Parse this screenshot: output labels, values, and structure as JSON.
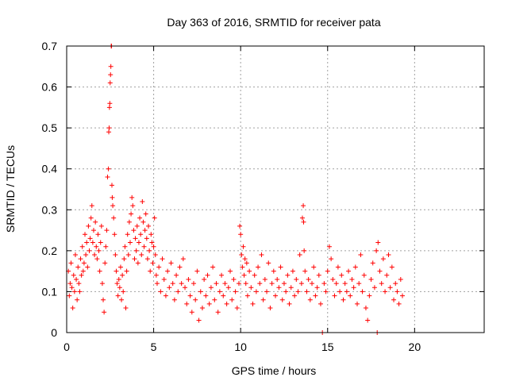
{
  "chart_data": {
    "type": "scatter",
    "title": "Day 363 of 2016, SRMTID for receiver pata",
    "xlabel": "GPS time / hours",
    "ylabel": "SRMTID / TECUs",
    "xlim": [
      0,
      24
    ],
    "ylim": [
      0,
      0.7
    ],
    "xticks": [
      0,
      5,
      10,
      15,
      20
    ],
    "yticks": [
      0,
      0.1,
      0.2,
      0.3,
      0.4,
      0.5,
      0.6,
      0.7
    ],
    "ytick_labels": [
      "0",
      "0.1",
      "0.2",
      "0.3",
      "0.4",
      "0.5",
      "0.6",
      "0.7"
    ],
    "grid": true,
    "marker": "+",
    "color": "#ff0000",
    "series": [
      {
        "name": "SRMTID",
        "points": [
          [
            0.1,
            0.15
          ],
          [
            0.15,
            0.09
          ],
          [
            0.2,
            0.12
          ],
          [
            0.25,
            0.17
          ],
          [
            0.3,
            0.11
          ],
          [
            0.35,
            0.06
          ],
          [
            0.4,
            0.14
          ],
          [
            0.45,
            0.1
          ],
          [
            0.5,
            0.19
          ],
          [
            0.55,
            0.13
          ],
          [
            0.6,
            0.08
          ],
          [
            0.65,
            0.16
          ],
          [
            0.7,
            0.12
          ],
          [
            0.75,
            0.1
          ],
          [
            0.8,
            0.18
          ],
          [
            0.85,
            0.14
          ],
          [
            0.9,
            0.21
          ],
          [
            0.95,
            0.15
          ],
          [
            1.0,
            0.17
          ],
          [
            1.05,
            0.24
          ],
          [
            1.1,
            0.19
          ],
          [
            1.15,
            0.22
          ],
          [
            1.2,
            0.16
          ],
          [
            1.25,
            0.26
          ],
          [
            1.3,
            0.2
          ],
          [
            1.35,
            0.23
          ],
          [
            1.4,
            0.28
          ],
          [
            1.45,
            0.31
          ],
          [
            1.5,
            0.22
          ],
          [
            1.55,
            0.25
          ],
          [
            1.6,
            0.19
          ],
          [
            1.65,
            0.27
          ],
          [
            1.7,
            0.21
          ],
          [
            1.75,
            0.18
          ],
          [
            1.8,
            0.24
          ],
          [
            1.85,
            0.2
          ],
          [
            1.9,
            0.15
          ],
          [
            1.95,
            0.22
          ],
          [
            2.0,
            0.26
          ],
          [
            2.05,
            0.12
          ],
          [
            2.1,
            0.08
          ],
          [
            2.15,
            0.05
          ],
          [
            2.2,
            0.17
          ],
          [
            2.25,
            0.21
          ],
          [
            2.3,
            0.25
          ],
          [
            2.35,
            0.38
          ],
          [
            2.4,
            0.4
          ],
          [
            2.42,
            0.49
          ],
          [
            2.44,
            0.5
          ],
          [
            2.46,
            0.55
          ],
          [
            2.48,
            0.56
          ],
          [
            2.5,
            0.61
          ],
          [
            2.52,
            0.63
          ],
          [
            2.54,
            0.65
          ],
          [
            2.56,
            0.7
          ],
          [
            2.58,
            0.7
          ],
          [
            2.6,
            0.36
          ],
          [
            2.62,
            0.33
          ],
          [
            2.65,
            0.31
          ],
          [
            2.7,
            0.28
          ],
          [
            2.75,
            0.24
          ],
          [
            2.8,
            0.19
          ],
          [
            2.85,
            0.15
          ],
          [
            2.9,
            0.12
          ],
          [
            2.95,
            0.09
          ],
          [
            3.0,
            0.13
          ],
          [
            3.05,
            0.11
          ],
          [
            3.1,
            0.16
          ],
          [
            3.15,
            0.08
          ],
          [
            3.2,
            0.14
          ],
          [
            3.25,
            0.1
          ],
          [
            3.3,
            0.18
          ],
          [
            3.35,
            0.21
          ],
          [
            3.4,
            0.06
          ],
          [
            3.45,
            0.15
          ],
          [
            3.5,
            0.24
          ],
          [
            3.55,
            0.19
          ],
          [
            3.6,
            0.27
          ],
          [
            3.65,
            0.22
          ],
          [
            3.7,
            0.29
          ],
          [
            3.75,
            0.33
          ],
          [
            3.8,
            0.31
          ],
          [
            3.85,
            0.25
          ],
          [
            3.9,
            0.18
          ],
          [
            3.95,
            0.23
          ],
          [
            4.0,
            0.2
          ],
          [
            4.05,
            0.26
          ],
          [
            4.1,
            0.17
          ],
          [
            4.15,
            0.22
          ],
          [
            4.2,
            0.28
          ],
          [
            4.25,
            0.24
          ],
          [
            4.3,
            0.19
          ],
          [
            4.35,
            0.32
          ],
          [
            4.4,
            0.27
          ],
          [
            4.45,
            0.21
          ],
          [
            4.5,
            0.25
          ],
          [
            4.55,
            0.29
          ],
          [
            4.6,
            0.23
          ],
          [
            4.65,
            0.18
          ],
          [
            4.7,
            0.26
          ],
          [
            4.75,
            0.2
          ],
          [
            4.8,
            0.15
          ],
          [
            4.85,
            0.24
          ],
          [
            4.9,
            0.22
          ],
          [
            4.95,
            0.17
          ],
          [
            5.0,
            0.21
          ],
          [
            5.05,
            0.28
          ],
          [
            5.1,
            0.19
          ],
          [
            5.15,
            0.14
          ],
          [
            5.2,
            0.12
          ],
          [
            5.3,
            0.16
          ],
          [
            5.4,
            0.1
          ],
          [
            5.5,
            0.18
          ],
          [
            5.6,
            0.13
          ],
          [
            5.7,
            0.09
          ],
          [
            5.8,
            0.15
          ],
          [
            5.9,
            0.11
          ],
          [
            6.0,
            0.17
          ],
          [
            6.1,
            0.12
          ],
          [
            6.2,
            0.08
          ],
          [
            6.3,
            0.14
          ],
          [
            6.4,
            0.1
          ],
          [
            6.5,
            0.16
          ],
          [
            6.6,
            0.12
          ],
          [
            6.7,
            0.18
          ],
          [
            6.8,
            0.11
          ],
          [
            6.9,
            0.07
          ],
          [
            7.0,
            0.13
          ],
          [
            7.1,
            0.09
          ],
          [
            7.2,
            0.05
          ],
          [
            7.3,
            0.12
          ],
          [
            7.4,
            0.08
          ],
          [
            7.5,
            0.15
          ],
          [
            7.6,
            0.03
          ],
          [
            7.7,
            0.1
          ],
          [
            7.8,
            0.06
          ],
          [
            7.9,
            0.13
          ],
          [
            8.0,
            0.09
          ],
          [
            8.1,
            0.14
          ],
          [
            8.2,
            0.07
          ],
          [
            8.3,
            0.11
          ],
          [
            8.4,
            0.16
          ],
          [
            8.5,
            0.08
          ],
          [
            8.6,
            0.12
          ],
          [
            8.7,
            0.05
          ],
          [
            8.8,
            0.1
          ],
          [
            8.9,
            0.14
          ],
          [
            9.0,
            0.09
          ],
          [
            9.1,
            0.12
          ],
          [
            9.2,
            0.07
          ],
          [
            9.3,
            0.11
          ],
          [
            9.4,
            0.15
          ],
          [
            9.5,
            0.08
          ],
          [
            9.6,
            0.13
          ],
          [
            9.7,
            0.1
          ],
          [
            9.8,
            0.06
          ],
          [
            9.9,
            0.12
          ],
          [
            9.95,
            0.26
          ],
          [
            10.0,
            0.24
          ],
          [
            10.05,
            0.19
          ],
          [
            10.1,
            0.16
          ],
          [
            10.15,
            0.21
          ],
          [
            10.2,
            0.14
          ],
          [
            10.25,
            0.18
          ],
          [
            10.3,
            0.12
          ],
          [
            10.35,
            0.17
          ],
          [
            10.4,
            0.09
          ],
          [
            10.5,
            0.15
          ],
          [
            10.6,
            0.11
          ],
          [
            10.7,
            0.07
          ],
          [
            10.8,
            0.14
          ],
          [
            10.9,
            0.1
          ],
          [
            11.0,
            0.16
          ],
          [
            11.1,
            0.12
          ],
          [
            11.2,
            0.19
          ],
          [
            11.3,
            0.08
          ],
          [
            11.4,
            0.13
          ],
          [
            11.5,
            0.1
          ],
          [
            11.6,
            0.17
          ],
          [
            11.7,
            0.06
          ],
          [
            11.8,
            0.12
          ],
          [
            11.9,
            0.15
          ],
          [
            12.0,
            0.09
          ],
          [
            12.1,
            0.13
          ],
          [
            12.2,
            0.11
          ],
          [
            12.3,
            0.16
          ],
          [
            12.4,
            0.08
          ],
          [
            12.5,
            0.12
          ],
          [
            12.6,
            0.1
          ],
          [
            12.7,
            0.14
          ],
          [
            12.8,
            0.07
          ],
          [
            12.9,
            0.11
          ],
          [
            13.0,
            0.15
          ],
          [
            13.1,
            0.09
          ],
          [
            13.2,
            0.13
          ],
          [
            13.3,
            0.1
          ],
          [
            13.4,
            0.19
          ],
          [
            13.5,
            0.12
          ],
          [
            13.55,
            0.28
          ],
          [
            13.6,
            0.31
          ],
          [
            13.62,
            0.27
          ],
          [
            13.65,
            0.2
          ],
          [
            13.7,
            0.15
          ],
          [
            13.8,
            0.1
          ],
          [
            13.9,
            0.13
          ],
          [
            14.0,
            0.08
          ],
          [
            14.1,
            0.12
          ],
          [
            14.2,
            0.16
          ],
          [
            14.3,
            0.09
          ],
          [
            14.4,
            0.11
          ],
          [
            14.5,
            0.14
          ],
          [
            14.6,
            0.07
          ],
          [
            14.7,
            0.0
          ],
          [
            14.8,
            0.12
          ],
          [
            14.9,
            0.1
          ],
          [
            15.0,
            0.15
          ],
          [
            15.1,
            0.21
          ],
          [
            15.2,
            0.18
          ],
          [
            15.3,
            0.13
          ],
          [
            15.4,
            0.09
          ],
          [
            15.5,
            0.12
          ],
          [
            15.6,
            0.16
          ],
          [
            15.7,
            0.1
          ],
          [
            15.8,
            0.14
          ],
          [
            15.9,
            0.08
          ],
          [
            16.0,
            0.12
          ],
          [
            16.1,
            0.1
          ],
          [
            16.2,
            0.15
          ],
          [
            16.3,
            0.09
          ],
          [
            16.4,
            0.13
          ],
          [
            16.5,
            0.11
          ],
          [
            16.6,
            0.16
          ],
          [
            16.7,
            0.07
          ],
          [
            16.8,
            0.12
          ],
          [
            16.9,
            0.19
          ],
          [
            17.0,
            0.1
          ],
          [
            17.1,
            0.14
          ],
          [
            17.2,
            0.06
          ],
          [
            17.3,
            0.03
          ],
          [
            17.4,
            0.09
          ],
          [
            17.5,
            0.13
          ],
          [
            17.6,
            0.17
          ],
          [
            17.7,
            0.11
          ],
          [
            17.8,
            0.2
          ],
          [
            17.85,
            0.0
          ],
          [
            17.9,
            0.22
          ],
          [
            18.0,
            0.15
          ],
          [
            18.1,
            0.12
          ],
          [
            18.2,
            0.18
          ],
          [
            18.3,
            0.1
          ],
          [
            18.4,
            0.14
          ],
          [
            18.5,
            0.19
          ],
          [
            18.6,
            0.11
          ],
          [
            18.7,
            0.16
          ],
          [
            18.8,
            0.08
          ],
          [
            18.9,
            0.12
          ],
          [
            19.0,
            0.1
          ],
          [
            19.1,
            0.07
          ],
          [
            19.2,
            0.13
          ],
          [
            19.3,
            0.09
          ]
        ]
      }
    ]
  }
}
